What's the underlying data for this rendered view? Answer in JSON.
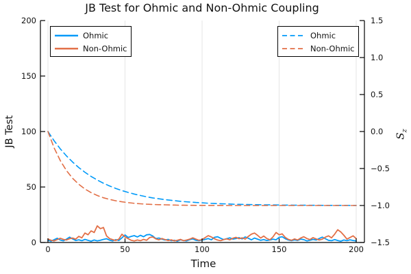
{
  "title": "JB Test for Ohmic and Non-Ohmic Coupling",
  "colors": {
    "ohmic_blue": "#009af9",
    "non_ohmic_orange": "#e26f46",
    "grid": "#e5e5e5",
    "axis": "#000000",
    "background": "#ffffff",
    "text": "#111111"
  },
  "chart_data": {
    "type": "line",
    "title": "JB Test for Ohmic and Non-Ohmic Coupling",
    "xlabel": "Time",
    "ylabel_left": "JB Test",
    "ylabel_right_base": "S",
    "ylabel_right_sub": "z",
    "xlim": [
      0,
      200
    ],
    "ylim_left": [
      0,
      200
    ],
    "ylim_right": [
      -1.5,
      1.5
    ],
    "grid": "vertical-only",
    "xticks": [
      0,
      50,
      100,
      150,
      200
    ],
    "xtick_labels": [
      "0",
      "50",
      "100",
      "150",
      "200"
    ],
    "yticks_left": [
      200,
      150,
      100,
      50,
      0
    ],
    "ytick_labels_left": [
      "200",
      "150",
      "100",
      "50",
      "0"
    ],
    "yticks_right": [
      1.5,
      1.0,
      0.5,
      0.0,
      -0.5,
      -1.0,
      -1.5
    ],
    "ytick_labels_right": [
      "1.5",
      "1.0",
      "0.5",
      "0.0",
      "−0.5",
      "−1.0",
      "−1.5"
    ],
    "legend_left": {
      "position": "top-left",
      "entries": [
        {
          "label": "Ohmic",
          "color": "#009af9",
          "style": "solid"
        },
        {
          "label": "Non-Ohmic",
          "color": "#e26f46",
          "style": "solid"
        }
      ]
    },
    "legend_right": {
      "position": "top-right",
      "entries": [
        {
          "label": "Ohmic",
          "color": "#009af9",
          "style": "dashed"
        },
        {
          "label": "Non-Ohmic",
          "color": "#e26f46",
          "style": "dashed"
        }
      ]
    },
    "series": [
      {
        "name": "Ohmic",
        "axis": "left",
        "style": "solid",
        "color": "#009af9",
        "x": [
          0,
          2,
          4,
          6,
          8,
          10,
          12,
          14,
          16,
          18,
          20,
          22,
          24,
          26,
          28,
          30,
          32,
          34,
          36,
          38,
          40,
          42,
          44,
          46,
          48,
          50,
          52,
          54,
          56,
          58,
          60,
          62,
          64,
          66,
          68,
          70,
          72,
          74,
          76,
          78,
          80,
          82,
          84,
          86,
          88,
          90,
          92,
          94,
          96,
          98,
          100,
          102,
          104,
          106,
          108,
          110,
          112,
          114,
          116,
          118,
          120,
          122,
          124,
          126,
          128,
          130,
          132,
          134,
          136,
          138,
          140,
          142,
          144,
          146,
          148,
          150,
          152,
          154,
          156,
          158,
          160,
          162,
          164,
          166,
          168,
          170,
          172,
          174,
          176,
          178,
          180,
          182,
          184,
          186,
          188,
          190,
          192,
          194,
          196,
          198,
          200
        ],
        "values": [
          2.0,
          1.2,
          2.5,
          3.8,
          2.2,
          1.5,
          3.0,
          4.8,
          3.2,
          1.8,
          2.4,
          1.6,
          2.8,
          1.9,
          1.2,
          2.2,
          1.5,
          2.0,
          2.8,
          3.4,
          2.1,
          1.4,
          2.6,
          1.8,
          4.2,
          6.8,
          4.5,
          5.5,
          6.2,
          5.0,
          6.5,
          5.2,
          6.9,
          7.2,
          5.8,
          3.5,
          4.0,
          3.0,
          2.2,
          2.8,
          1.6,
          2.0,
          1.2,
          2.4,
          1.8,
          1.4,
          2.6,
          3.2,
          2.0,
          1.6,
          2.2,
          2.8,
          3.5,
          2.4,
          4.6,
          5.2,
          3.8,
          2.6,
          3.4,
          4.2,
          3.0,
          3.6,
          4.4,
          3.2,
          5.0,
          3.8,
          2.4,
          4.0,
          3.0,
          2.0,
          2.6,
          1.8,
          2.2,
          3.0,
          2.4,
          4.6,
          5.2,
          3.4,
          2.2,
          1.6,
          2.4,
          1.8,
          3.0,
          2.6,
          1.4,
          2.0,
          2.8,
          2.2,
          3.6,
          4.8,
          3.4,
          2.0,
          1.6,
          2.6,
          1.8,
          1.2,
          2.2,
          1.6,
          2.4,
          1.8,
          1.4
        ]
      },
      {
        "name": "Non-Ohmic",
        "axis": "left",
        "style": "solid",
        "color": "#e26f46",
        "x": [
          0,
          2,
          4,
          6,
          8,
          10,
          12,
          14,
          16,
          18,
          20,
          22,
          24,
          26,
          28,
          30,
          32,
          34,
          36,
          38,
          40,
          42,
          44,
          46,
          48,
          50,
          52,
          54,
          56,
          58,
          60,
          62,
          64,
          66,
          68,
          70,
          72,
          74,
          76,
          78,
          80,
          82,
          84,
          86,
          88,
          90,
          92,
          94,
          96,
          98,
          100,
          102,
          104,
          106,
          108,
          110,
          112,
          114,
          116,
          118,
          120,
          122,
          124,
          126,
          128,
          130,
          132,
          134,
          136,
          138,
          140,
          142,
          144,
          146,
          148,
          150,
          152,
          154,
          156,
          158,
          160,
          162,
          164,
          166,
          168,
          170,
          172,
          174,
          176,
          178,
          180,
          182,
          184,
          186,
          188,
          190,
          192,
          194,
          196,
          198,
          200
        ],
        "values": [
          3.2,
          2.0,
          1.4,
          2.6,
          3.8,
          2.8,
          2.2,
          3.4,
          4.0,
          3.0,
          5.5,
          4.2,
          8.5,
          7.0,
          10.5,
          9.0,
          15.0,
          12.5,
          13.5,
          6.0,
          3.5,
          2.5,
          1.8,
          3.0,
          7.5,
          5.0,
          3.5,
          2.0,
          1.4,
          2.2,
          1.6,
          2.8,
          2.0,
          4.5,
          5.0,
          3.2,
          2.4,
          3.6,
          2.6,
          1.8,
          2.4,
          1.5,
          2.0,
          2.8,
          1.6,
          2.2,
          3.0,
          4.2,
          3.0,
          2.0,
          2.6,
          4.4,
          6.2,
          5.0,
          3.4,
          2.2,
          1.6,
          2.6,
          3.2,
          2.4,
          3.8,
          4.6,
          3.4,
          4.2,
          3.0,
          5.5,
          7.5,
          8.5,
          6.5,
          4.0,
          5.8,
          3.6,
          2.4,
          5.0,
          9.0,
          7.0,
          7.8,
          4.5,
          2.8,
          2.0,
          3.2,
          2.2,
          4.0,
          5.2,
          3.6,
          2.6,
          4.4,
          3.2,
          2.2,
          3.0,
          4.8,
          6.0,
          4.2,
          7.5,
          11.5,
          9.5,
          6.5,
          3.0,
          4.5,
          6.0,
          3.5
        ]
      },
      {
        "name": "Ohmic",
        "axis": "right",
        "style": "dashed",
        "color": "#009af9",
        "x": [
          0,
          4,
          8,
          12,
          16,
          20,
          24,
          28,
          32,
          36,
          40,
          44,
          48,
          52,
          56,
          60,
          64,
          68,
          72,
          76,
          80,
          84,
          88,
          92,
          96,
          100,
          104,
          108,
          112,
          116,
          120,
          124,
          128,
          132,
          136,
          140,
          144,
          148,
          152,
          156,
          160,
          164,
          168,
          172,
          176,
          180,
          184,
          188,
          192,
          196,
          200
        ],
        "values": [
          0.0,
          -0.125,
          -0.234,
          -0.33,
          -0.413,
          -0.487,
          -0.551,
          -0.607,
          -0.656,
          -0.699,
          -0.736,
          -0.769,
          -0.798,
          -0.823,
          -0.845,
          -0.865,
          -0.882,
          -0.897,
          -0.909,
          -0.921,
          -0.93,
          -0.939,
          -0.947,
          -0.953,
          -0.959,
          -0.964,
          -0.969,
          -0.973,
          -0.976,
          -0.979,
          -0.982,
          -0.984,
          -0.986,
          -0.988,
          -0.989,
          -0.991,
          -0.992,
          -0.993,
          -0.994,
          -0.994,
          -0.995,
          -0.996,
          -0.996,
          -0.997,
          -0.997,
          -0.998,
          -0.998,
          -0.998,
          -0.998,
          -0.999,
          -0.999
        ]
      },
      {
        "name": "Non-Ohmic",
        "axis": "right",
        "style": "dashed",
        "color": "#e26f46",
        "x": [
          0,
          4,
          8,
          12,
          16,
          20,
          24,
          28,
          32,
          36,
          40,
          44,
          48,
          52,
          56,
          60,
          64,
          68,
          72,
          76,
          80,
          84,
          88,
          92,
          96,
          100,
          104,
          108,
          112,
          116,
          120,
          124,
          128,
          132,
          136,
          140,
          144,
          148,
          152,
          156,
          160,
          164,
          168,
          172,
          176,
          180,
          184,
          188,
          192,
          196,
          200
        ],
        "values": [
          0.0,
          -0.221,
          -0.393,
          -0.528,
          -0.632,
          -0.713,
          -0.777,
          -0.826,
          -0.865,
          -0.895,
          -0.918,
          -0.936,
          -0.95,
          -0.961,
          -0.97,
          -0.977,
          -0.982,
          -0.986,
          -0.989,
          -0.991,
          -0.993,
          -0.995,
          -0.996,
          -0.997,
          -0.998,
          -0.998,
          -0.999,
          -0.999,
          -0.999,
          -1.0,
          -1.0,
          -1.0,
          -1.0,
          -1.0,
          -1.0,
          -1.0,
          -1.0,
          -1.0,
          -1.0,
          -1.0,
          -1.0,
          -1.0,
          -1.0,
          -1.0,
          -1.0,
          -1.0,
          -1.0,
          -1.0,
          -1.0,
          -1.0,
          -1.0
        ]
      }
    ]
  }
}
